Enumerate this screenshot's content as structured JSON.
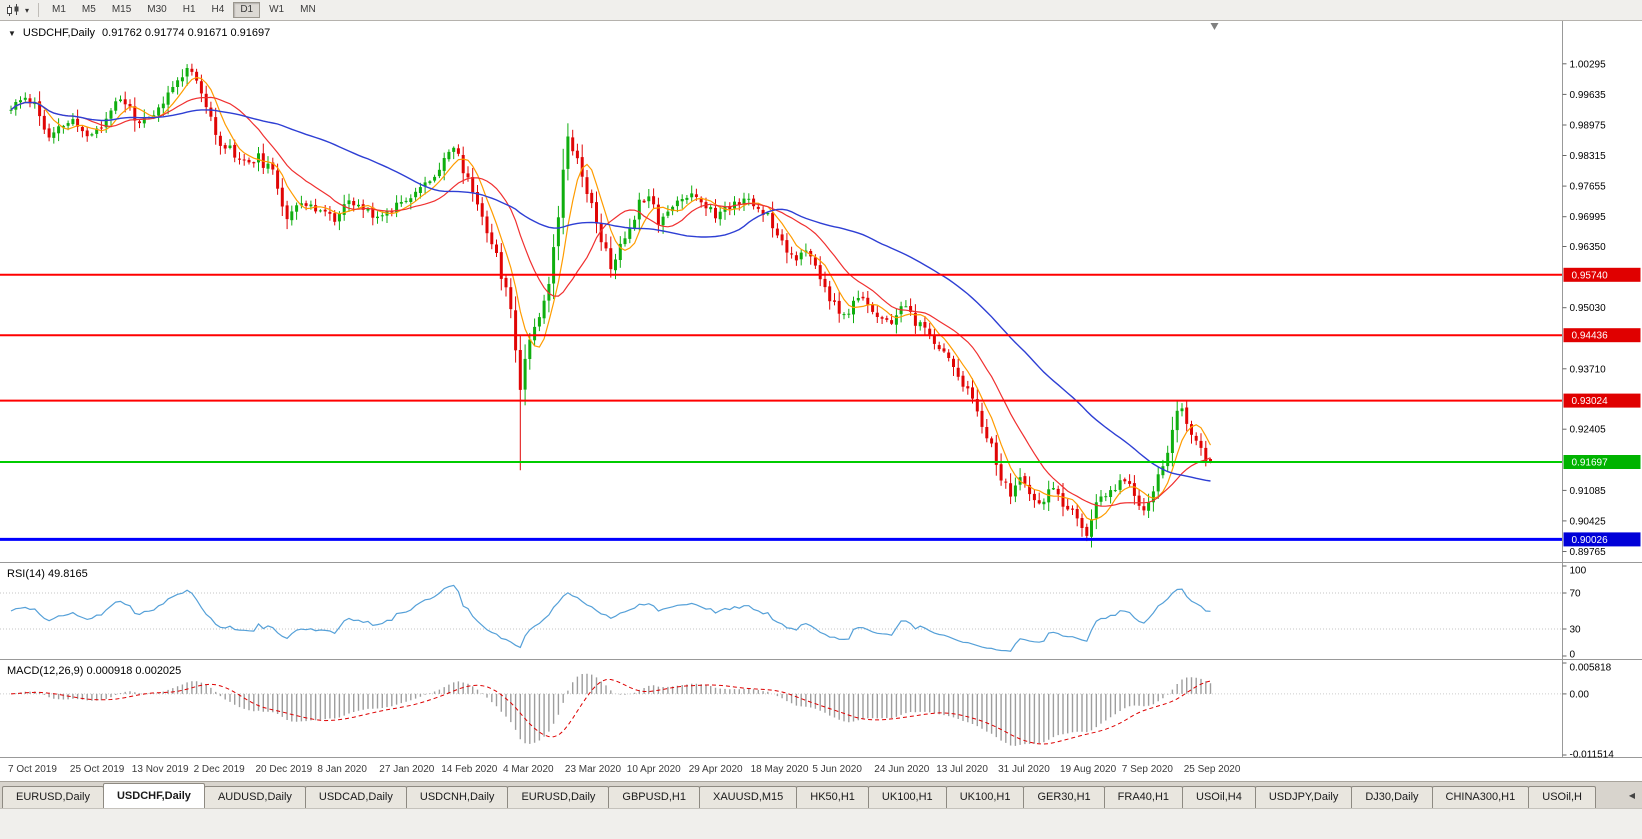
{
  "toolbar": {
    "timeframes": [
      {
        "label": "M1",
        "active": false
      },
      {
        "label": "M5",
        "active": false
      },
      {
        "label": "M15",
        "active": false
      },
      {
        "label": "M30",
        "active": false
      },
      {
        "label": "H1",
        "active": false
      },
      {
        "label": "H4",
        "active": false
      },
      {
        "label": "D1",
        "active": true
      },
      {
        "label": "W1",
        "active": false
      },
      {
        "label": "MN",
        "active": false
      }
    ]
  },
  "icons": {
    "title_marker": "▼",
    "chart_type_caret": "▾",
    "tab_scroll_left": "◀"
  },
  "chart": {
    "symbol_period": "USDCHF,Daily",
    "quote": "0.91762 0.91774 0.91671 0.91697"
  },
  "price_axis": {
    "labels": [
      "1.00295",
      "0.99635",
      "0.98975",
      "0.98315",
      "0.97655",
      "0.96995",
      "0.96350",
      "0.95030",
      "0.93710",
      "0.92405",
      "0.91085",
      "0.90425",
      "0.89765"
    ]
  },
  "rsi": {
    "header": "RSI(14) 49.8165",
    "axis_labels": [
      "100",
      "70",
      "30",
      "0"
    ]
  },
  "macd": {
    "header": "MACD(12,26,9) 0.000918 0.002025",
    "axis_labels": [
      "0.005818",
      "0.00",
      "-0.011514"
    ]
  },
  "dates": [
    "7 Oct 2019",
    "25 Oct 2019",
    "13 Nov 2019",
    "2 Dec 2019",
    "20 Dec 2019",
    "8 Jan 2020",
    "27 Jan 2020",
    "14 Feb 2020",
    "4 Mar 2020",
    "23 Mar 2020",
    "10 Apr 2020",
    "29 Apr 2020",
    "18 May 2020",
    "5 Jun 2020",
    "24 Jun 2020",
    "13 Jul 2020",
    "31 Jul 2020",
    "19 Aug 2020",
    "7 Sep 2020",
    "25 Sep 2020"
  ],
  "tabs": [
    {
      "label": "EURUSD,Daily",
      "active": false
    },
    {
      "label": "USDCHF,Daily",
      "active": true
    },
    {
      "label": "AUDUSD,Daily",
      "active": false
    },
    {
      "label": "USDCAD,Daily",
      "active": false
    },
    {
      "label": "USDCNH,Daily",
      "active": false
    },
    {
      "label": "EURUSD,Daily",
      "active": false
    },
    {
      "label": "GBPUSD,H1",
      "active": false
    },
    {
      "label": "XAUUSD,M15",
      "active": false
    },
    {
      "label": "HK50,H1",
      "active": false
    },
    {
      "label": "UK100,H1",
      "active": false
    },
    {
      "label": "UK100,H1",
      "active": false
    },
    {
      "label": "GER30,H1",
      "active": false
    },
    {
      "label": "FRA40,H1",
      "active": false
    },
    {
      "label": "USOil,H4",
      "active": false
    },
    {
      "label": "USDJPY,Daily",
      "active": false
    },
    {
      "label": "DJ30,Daily",
      "active": false
    },
    {
      "label": "CHINA300,H1",
      "active": false
    },
    {
      "label": "USOil,H",
      "active": false
    }
  ],
  "chart_data": {
    "type": "candlestick",
    "symbol": "USDCHF",
    "timeframe": "Daily",
    "current_quote": {
      "open": 0.91762,
      "high": 0.91774,
      "low": 0.91671,
      "close": 0.91697
    },
    "price_range": {
      "min": 0.8956,
      "max": 1.0122
    },
    "candle_count": 253,
    "bar_spacing": 4.76,
    "date_step": 13,
    "seed": 11,
    "noise": 0.0022,
    "wick": 0.0015,
    "colors": {
      "bull": "#0fae0f",
      "bear": "#e00505"
    },
    "trend_anchors": [
      [
        0,
        0.993
      ],
      [
        3,
        0.9958
      ],
      [
        5,
        0.9945
      ],
      [
        8,
        0.9865
      ],
      [
        11,
        0.9898
      ],
      [
        13,
        0.9905
      ],
      [
        16,
        0.9875
      ],
      [
        19,
        0.9893
      ],
      [
        22,
        0.9953
      ],
      [
        25,
        0.9935
      ],
      [
        27,
        0.9897
      ],
      [
        30,
        0.9915
      ],
      [
        33,
        0.9962
      ],
      [
        36,
        1.001
      ],
      [
        38,
        1.0022
      ],
      [
        39,
        0.9995
      ],
      [
        41,
        0.9938
      ],
      [
        43,
        0.9872
      ],
      [
        46,
        0.9846
      ],
      [
        49,
        0.9816
      ],
      [
        52,
        0.9826
      ],
      [
        55,
        0.9792
      ],
      [
        58,
        0.97
      ],
      [
        60,
        0.9732
      ],
      [
        63,
        0.9716
      ],
      [
        65,
        0.9722
      ],
      [
        68,
        0.9692
      ],
      [
        71,
        0.973
      ],
      [
        74,
        0.9716
      ],
      [
        78,
        0.97
      ],
      [
        81,
        0.9729
      ],
      [
        84,
        0.9749
      ],
      [
        88,
        0.9773
      ],
      [
        91,
        0.9829
      ],
      [
        93,
        0.9851
      ],
      [
        95,
        0.9801
      ],
      [
        97,
        0.9756
      ],
      [
        99,
        0.9701
      ],
      [
        101,
        0.9646
      ],
      [
        103,
        0.9576
      ],
      [
        105,
        0.9502
      ],
      [
        106,
        0.942
      ],
      [
        107,
        0.933
      ],
      [
        108,
        0.9392
      ],
      [
        109,
        0.9441
      ],
      [
        111,
        0.949
      ],
      [
        113,
        0.9558
      ],
      [
        115,
        0.97
      ],
      [
        116,
        0.9808
      ],
      [
        117,
        0.9882
      ],
      [
        118,
        0.9852
      ],
      [
        120,
        0.9792
      ],
      [
        122,
        0.9722
      ],
      [
        124,
        0.9652
      ],
      [
        126,
        0.9592
      ],
      [
        128,
        0.9632
      ],
      [
        130,
        0.9678
      ],
      [
        132,
        0.9729
      ],
      [
        134,
        0.9754
      ],
      [
        136,
        0.9692
      ],
      [
        138,
        0.9711
      ],
      [
        141,
        0.9739
      ],
      [
        143,
        0.9754
      ],
      [
        145,
        0.9736
      ],
      [
        148,
        0.9701
      ],
      [
        151,
        0.9724
      ],
      [
        154,
        0.9741
      ],
      [
        156,
        0.9721
      ],
      [
        159,
        0.9704
      ],
      [
        161,
        0.9666
      ],
      [
        163,
        0.9631
      ],
      [
        165,
        0.9611
      ],
      [
        167,
        0.9621
      ],
      [
        169,
        0.9591
      ],
      [
        171,
        0.9546
      ],
      [
        173,
        0.9506
      ],
      [
        175,
        0.9481
      ],
      [
        177,
        0.9509
      ],
      [
        179,
        0.9531
      ],
      [
        182,
        0.9481
      ],
      [
        184,
        0.9466
      ],
      [
        186,
        0.9486
      ],
      [
        188,
        0.9506
      ],
      [
        190,
        0.9471
      ],
      [
        193,
        0.9441
      ],
      [
        195,
        0.9421
      ],
      [
        197,
        0.9391
      ],
      [
        199,
        0.9361
      ],
      [
        201,
        0.9321
      ],
      [
        203,
        0.9281
      ],
      [
        205,
        0.9231
      ],
      [
        207,
        0.9171
      ],
      [
        208,
        0.9131
      ],
      [
        210,
        0.9101
      ],
      [
        212,
        0.9136
      ],
      [
        214,
        0.9096
      ],
      [
        216,
        0.9071
      ],
      [
        218,
        0.9116
      ],
      [
        220,
        0.9091
      ],
      [
        221,
        0.9076
      ],
      [
        223,
        0.9056
      ],
      [
        225,
        0.9031
      ],
      [
        226,
        0.9016
      ],
      [
        228,
        0.9076
      ],
      [
        230,
        0.9096
      ],
      [
        232,
        0.9111
      ],
      [
        234,
        0.9136
      ],
      [
        236,
        0.9096
      ],
      [
        238,
        0.9066
      ],
      [
        240,
        0.9111
      ],
      [
        242,
        0.9161
      ],
      [
        244,
        0.9236
      ],
      [
        245,
        0.9271
      ],
      [
        246,
        0.9286
      ],
      [
        247,
        0.9251
      ],
      [
        249,
        0.9206
      ],
      [
        251,
        0.9181
      ],
      [
        252,
        0.917
      ]
    ],
    "overrides": [
      {
        "i": 37,
        "h": 1.0029
      },
      {
        "i": 107,
        "l": 0.9152
      },
      {
        "i": 117,
        "h": 0.9901
      },
      {
        "i": 226,
        "l": 0.8999
      },
      {
        "i": 246,
        "h": 0.9297
      },
      {
        "i": 252,
        "o": 0.91762,
        "h": 0.91774,
        "l": 0.91671,
        "c": 0.91697
      }
    ],
    "moving_averages": [
      {
        "name": "fast",
        "period": 6,
        "color": "#ff9c00",
        "width": 1.2
      },
      {
        "name": "medium",
        "period": 16,
        "color": "#f03030",
        "width": 1.2
      },
      {
        "name": "slow",
        "period": 48,
        "color": "#2e3fd4",
        "width": 1.4
      }
    ],
    "levels": [
      {
        "value": 0.9574,
        "label": "0.95740",
        "color": "#ff0000",
        "badge": "#e00000",
        "width": 2
      },
      {
        "value": 0.94436,
        "label": "0.94436",
        "color": "#ff0000",
        "badge": "#e00000",
        "width": 2
      },
      {
        "value": 0.93024,
        "label": "0.93024",
        "color": "#ff0000",
        "badge": "#e00000",
        "width": 2
      },
      {
        "value": 0.91697,
        "label": "0.91697",
        "color": "#00cc00",
        "badge": "#00b300",
        "width": 2
      },
      {
        "value": 0.90026,
        "label": "0.90026",
        "color": "#0000ff",
        "badge": "#0000d8",
        "width": 3
      }
    ],
    "rsi_period": 14,
    "rsi_current": 49.8165,
    "rsi_levels": [
      70,
      30
    ],
    "rsi_color": "#55a0d8",
    "macd": {
      "fast": 12,
      "slow": 26,
      "signal": 9,
      "current_main": 0.000918,
      "current_signal": 0.002025,
      "axis_values": [
        0.005818,
        0,
        -0.011514
      ],
      "histogram_color": "#9e9e9e",
      "signal_color": "#dd0000"
    }
  }
}
